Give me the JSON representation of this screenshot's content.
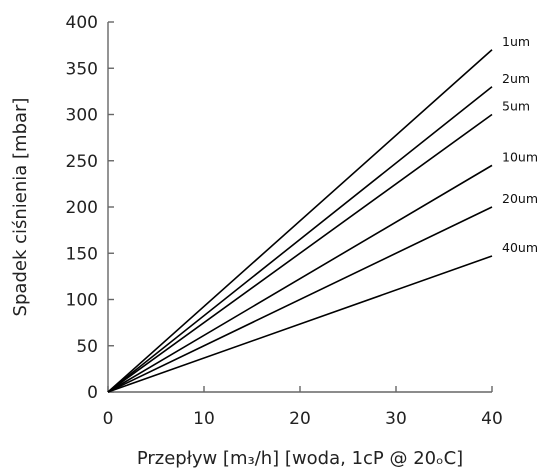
{
  "chart_data": {
    "type": "line",
    "xlabel": "Przepływ [m₃/h] [woda, 1cP @ 20ₒC]",
    "ylabel": "Spadek ciśnienia [mbar]",
    "xlim": [
      0,
      40
    ],
    "ylim": [
      0,
      400
    ],
    "xticks": [
      "0",
      "10",
      "20",
      "30",
      "40"
    ],
    "yticks": [
      "0",
      "50",
      "100",
      "150",
      "200",
      "250",
      "300",
      "350",
      "400"
    ],
    "grid": false,
    "series": [
      {
        "name": "1um",
        "x": [
          0,
          40
        ],
        "y": [
          0,
          370
        ]
      },
      {
        "name": "2um",
        "x": [
          0,
          40
        ],
        "y": [
          0,
          330
        ]
      },
      {
        "name": "5um",
        "x": [
          0,
          40
        ],
        "y": [
          0,
          300
        ]
      },
      {
        "name": "10um",
        "x": [
          0,
          40
        ],
        "y": [
          0,
          245
        ]
      },
      {
        "name": "20um",
        "x": [
          0,
          40
        ],
        "y": [
          0,
          200
        ]
      },
      {
        "name": "40um",
        "x": [
          0,
          40
        ],
        "y": [
          0,
          147
        ]
      }
    ]
  }
}
